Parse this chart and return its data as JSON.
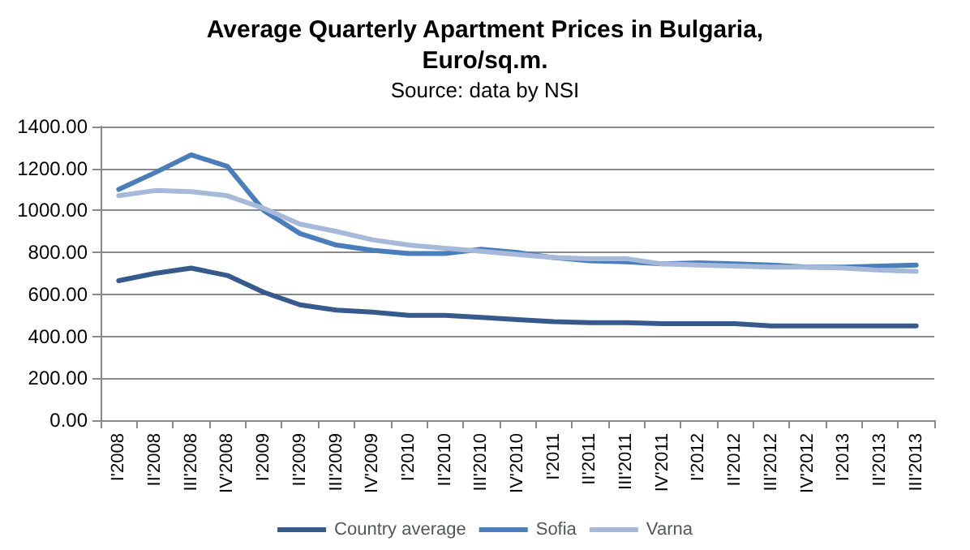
{
  "chart_data": {
    "type": "line",
    "title": "Average Quarterly Apartment Prices in Bulgaria,\nEuro/sq.m.",
    "subtitle": "Source: data by NSI",
    "categories": [
      "I'2008",
      "II'2008",
      "III'2008",
      "IV'2008",
      "I'2009",
      "II'2009",
      "III'2009",
      "IV'2009",
      "I'2010",
      "II'2010",
      "III'2010",
      "IV'2010",
      "I'2011",
      "II'2011",
      "III'2011",
      "IV'2011",
      "I'2012",
      "II'2012",
      "III'2012",
      "IV'2012",
      "I'2013",
      "II'2013",
      "III'2013"
    ],
    "series": [
      {
        "name": "Country average",
        "color": "#375a8c",
        "values": [
          665,
          700,
          725,
          690,
          610,
          550,
          525,
          515,
          500,
          500,
          490,
          480,
          470,
          465,
          465,
          460,
          460,
          460,
          450,
          450,
          450,
          450,
          450
        ]
      },
      {
        "name": "Sofia",
        "color": "#4a7ebb",
        "values": [
          1100,
          1180,
          1265,
          1210,
          1000,
          890,
          835,
          810,
          795,
          795,
          815,
          800,
          775,
          760,
          755,
          745,
          750,
          745,
          740,
          730,
          730,
          735,
          740
        ]
      },
      {
        "name": "Varna",
        "color": "#a7b9d9",
        "values": [
          1070,
          1095,
          1090,
          1070,
          1010,
          935,
          900,
          860,
          835,
          820,
          805,
          790,
          775,
          770,
          770,
          745,
          740,
          735,
          730,
          730,
          725,
          715,
          710
        ]
      }
    ],
    "ylim": [
      0,
      1400
    ],
    "yticks": [
      {
        "value": 0,
        "label": "0.00"
      },
      {
        "value": 200,
        "label": "200.00"
      },
      {
        "value": 400,
        "label": "400.00"
      },
      {
        "value": 600,
        "label": "600.00"
      },
      {
        "value": 800,
        "label": "800.00"
      },
      {
        "value": 1000,
        "label": "1000.00"
      },
      {
        "value": 1200,
        "label": "1200.00"
      },
      {
        "value": 1400,
        "label": "1400.00"
      }
    ],
    "grid": "y",
    "legend": "bottom",
    "marker": "none",
    "line_style": "solid"
  }
}
